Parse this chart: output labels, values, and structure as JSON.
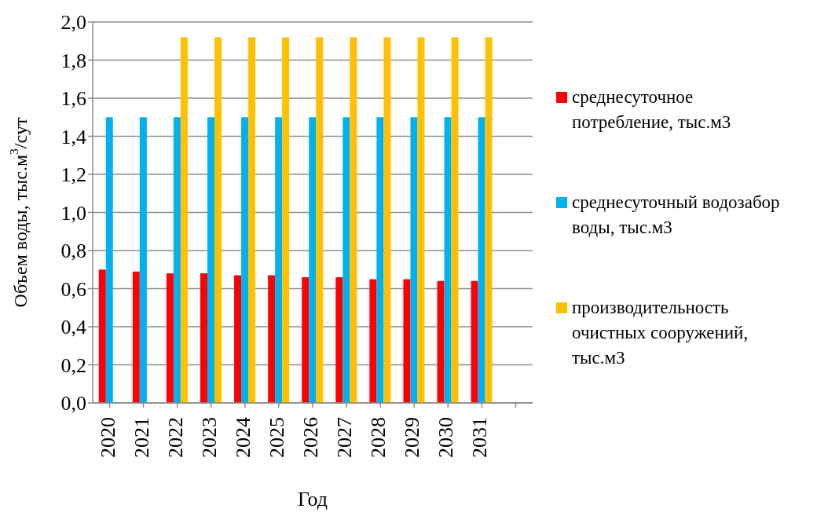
{
  "chart_data": {
    "type": "bar",
    "xlabel": "Год",
    "ylabel": "Объем воды, тыс.м$^{3}$/сут",
    "categories": [
      "2020",
      "2021",
      "2022",
      "2023",
      "2024",
      "2025",
      "2026",
      "2027",
      "2028",
      "2029",
      "2030",
      "2031",
      null
    ],
    "series": [
      {
        "name": "среднесуточное потребление, тыс.м3",
        "color": "#ff0000",
        "values": [
          0.7,
          0.69,
          0.68,
          0.68,
          0.67,
          0.67,
          0.66,
          0.66,
          0.65,
          0.65,
          0.64,
          0.64,
          null
        ]
      },
      {
        "name": "среднесуточный водозабор воды, тыс.м3",
        "color": "#00b0f0",
        "values": [
          1.5,
          1.5,
          1.5,
          1.5,
          1.5,
          1.5,
          1.5,
          1.5,
          1.5,
          1.5,
          1.5,
          1.5,
          null
        ]
      },
      {
        "name": "производительность очистных сооружений, тыс.м3",
        "color": "#ffc000",
        "values": [
          null,
          null,
          1.92,
          1.92,
          1.92,
          1.92,
          1.92,
          1.92,
          1.92,
          1.92,
          1.92,
          1.92,
          null
        ]
      }
    ],
    "ylim": [
      0,
      2
    ],
    "yticks": [
      {
        "value": 0,
        "label": "0,0"
      },
      {
        "value": 0.2,
        "label": "0,2"
      },
      {
        "value": 0.4,
        "label": "0,4"
      },
      {
        "value": 0.6,
        "label": "0,6"
      },
      {
        "value": 0.8,
        "label": "0,8"
      },
      {
        "value": 1,
        "label": "1,0"
      },
      {
        "value": 1.2,
        "label": "1,2"
      },
      {
        "value": 1.4,
        "label": "1,4"
      },
      {
        "value": 1.6,
        "label": "1,6"
      },
      {
        "value": 1.8,
        "label": "1,8"
      },
      {
        "value": 2,
        "label": "2,0"
      }
    ],
    "grid": "y",
    "legend": "right"
  }
}
